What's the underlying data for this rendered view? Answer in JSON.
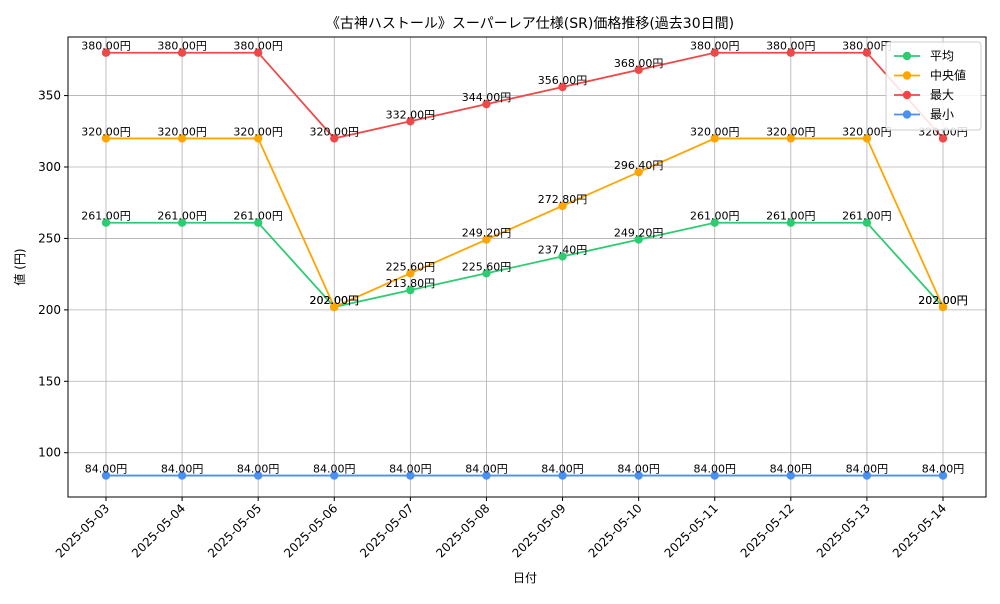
{
  "chart_data": {
    "type": "line",
    "title": "《古神ハストール》スーパーレア仕様(SR)価格推移(過去30日間)",
    "xlabel": "日付",
    "ylabel": "値 (円)",
    "categories": [
      "2025-05-03",
      "2025-05-04",
      "2025-05-05",
      "2025-05-06",
      "2025-05-07",
      "2025-05-08",
      "2025-05-09",
      "2025-05-10",
      "2025-05-11",
      "2025-05-12",
      "2025-05-13",
      "2025-05-14"
    ],
    "ylim": [
      69,
      391
    ],
    "yticks": [
      100,
      150,
      200,
      250,
      300,
      350
    ],
    "grid": true,
    "legend_position": "top-right",
    "value_suffix": "円",
    "series": [
      {
        "name": "平均",
        "color": "#2ecc71",
        "values": [
          261,
          261,
          261,
          202,
          213.8,
          225.6,
          237.4,
          249.2,
          261,
          261,
          261,
          202
        ]
      },
      {
        "name": "中央値",
        "color": "#ffa500",
        "values": [
          320,
          320,
          320,
          202,
          225.6,
          249.2,
          272.8,
          296.4,
          320,
          320,
          320,
          202
        ]
      },
      {
        "name": "最大",
        "color": "#f04848",
        "values": [
          380,
          380,
          380,
          320,
          332,
          344,
          356,
          368,
          380,
          380,
          380,
          320
        ]
      },
      {
        "name": "最小",
        "color": "#4a90f0",
        "values": [
          84,
          84,
          84,
          84,
          84,
          84,
          84,
          84,
          84,
          84,
          84,
          84
        ]
      }
    ]
  }
}
